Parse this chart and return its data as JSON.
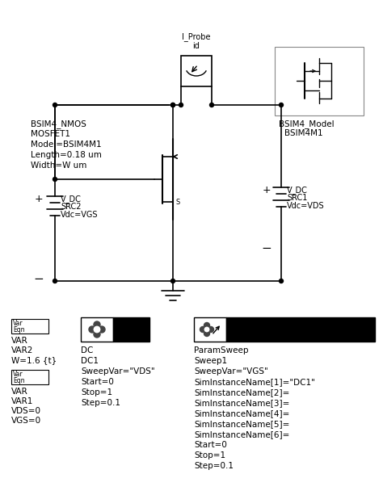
{
  "bg_color": "#ffffff",
  "fig_width": 4.74,
  "fig_height": 6.13,
  "dpi": 100,
  "bsim_label": [
    "BSIM4_NMOS",
    "MOSFET1",
    "Model=BSIM4M1",
    "Length=0.18 um",
    "Width=W um"
  ],
  "vgs_label": [
    "V_DC",
    "SRC2",
    "Vdc=VGS"
  ],
  "vds_label": [
    "V_DC",
    "SRC1",
    "Vdc=VDS"
  ],
  "probe_label": [
    "I_Probe",
    "id"
  ],
  "bsim_model_label": [
    "BSIM4_Model",
    "BSIM4M1"
  ],
  "var1_label": [
    "VAR",
    "VAR2",
    "W=1.6 {t}"
  ],
  "var2_label": [
    "VAR",
    "VAR1",
    "VDS=0",
    "VGS=0"
  ],
  "dc_params": [
    "DC",
    "DC1",
    "SweepVar=\"VDS\"",
    "Start=0",
    "Stop=1",
    "Step=0.1"
  ],
  "ps_params": [
    "ParamSweep",
    "Sweep1",
    "SweepVar=\"VGS\"",
    "SimInstanceName[1]=\"DC1\"",
    "SimInstanceName[2]=",
    "SimInstanceName[3]=",
    "SimInstanceName[4]=",
    "SimInstanceName[5]=",
    "SimInstanceName[6]=",
    "Start=0",
    "Stop=1",
    "Step=0.1"
  ]
}
